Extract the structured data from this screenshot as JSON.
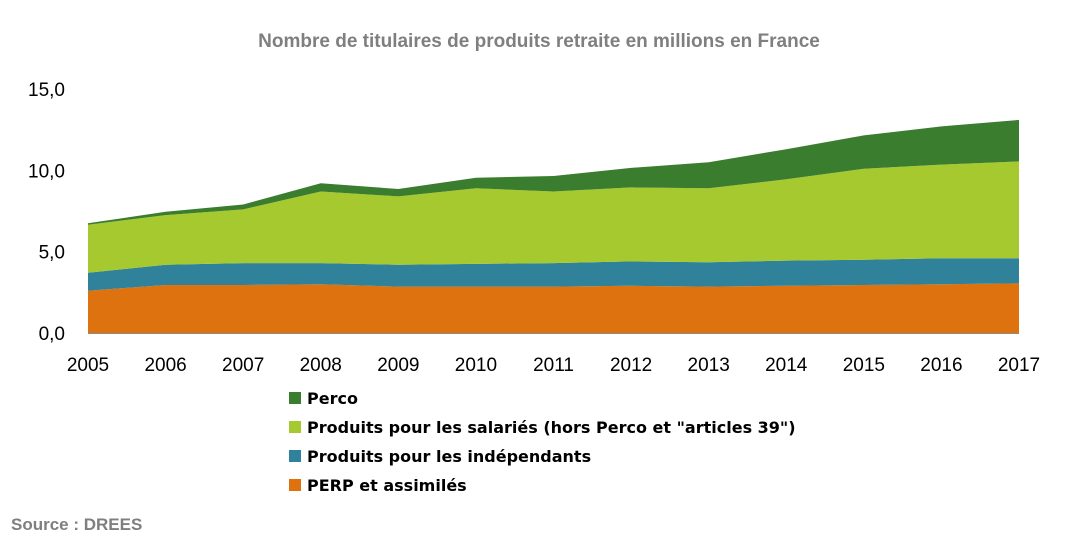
{
  "chart_data": {
    "type": "area",
    "stacked": true,
    "title": "Nombre de titulaires de produits retraite en millions en France",
    "xlabel": "",
    "ylabel": "",
    "x": [
      "2005",
      "2006",
      "2007",
      "2008",
      "2009",
      "2010",
      "2011",
      "2012",
      "2013",
      "2014",
      "2015",
      "2016",
      "2017"
    ],
    "ylim": [
      0,
      15
    ],
    "yticks": [
      "0,0",
      "5,0",
      "10,0",
      "15,0"
    ],
    "ytick_values": [
      0,
      5,
      10,
      15
    ],
    "series": [
      {
        "name": "PERP et assimilés",
        "color": "#dd720f",
        "values": [
          2.6,
          2.95,
          2.95,
          3.0,
          2.85,
          2.85,
          2.85,
          2.9,
          2.85,
          2.9,
          2.95,
          3.0,
          3.05
        ]
      },
      {
        "name": "Produits pour les indépendants",
        "color": "#2f829a",
        "values": [
          1.1,
          1.25,
          1.35,
          1.3,
          1.35,
          1.4,
          1.45,
          1.5,
          1.5,
          1.55,
          1.55,
          1.6,
          1.55
        ]
      },
      {
        "name": "Produits pour les salariés (hors Perco et \"articles 39\")",
        "color": "#a6c92f",
        "values": [
          2.95,
          3.05,
          3.3,
          4.4,
          4.2,
          4.65,
          4.4,
          4.55,
          4.55,
          5.0,
          5.6,
          5.75,
          5.95
        ]
      },
      {
        "name": "Perco",
        "color": "#3a7d2e",
        "values": [
          0.1,
          0.2,
          0.3,
          0.5,
          0.45,
          0.65,
          0.95,
          1.2,
          1.6,
          1.85,
          2.05,
          2.35,
          2.55
        ]
      }
    ],
    "legend_position": "bottom-left",
    "legend_order": [
      "Perco",
      "Produits pour les salariés (hors Perco et \"articles 39\")",
      "Produits pour les indépendants",
      "PERP et assimilés"
    ],
    "grid": false
  },
  "source": "Source : DREES"
}
